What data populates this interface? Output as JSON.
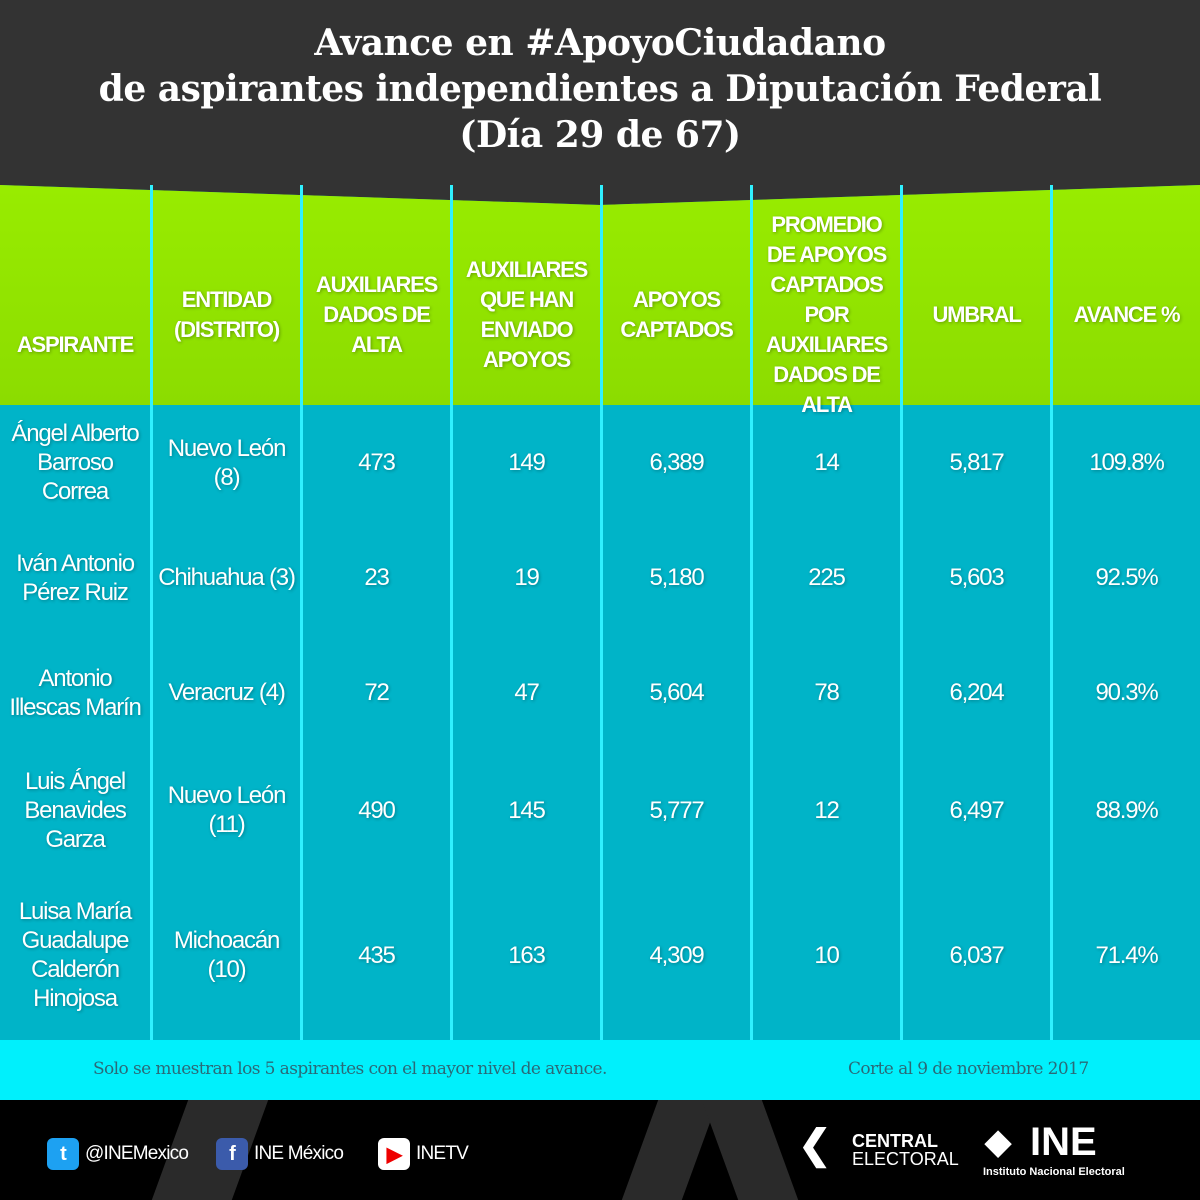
{
  "title": [
    "Avance en #ApoyoCiudadano",
    "de aspirantes independientes a Diputación Federal",
    "(Día 29 de 67)"
  ],
  "headers": [
    "ASPIRANTE",
    "ENTIDAD (DISTRITO)",
    "AUXILIARES DADOS DE ALTA",
    "AUXILIARES QUE HAN ENVIADO APOYOS",
    "APOYOS CAPTADOS",
    "PROMEDIO DE APOYOS CAPTADOS POR AUXILIARES DADOS DE ALTA",
    "UMBRAL",
    "AVANCE %"
  ],
  "rows": [
    [
      "Ángel Alberto Barroso Correa",
      "Nuevo León (8)",
      "473",
      "149",
      "6,389",
      "14",
      "5,817",
      "109.8%"
    ],
    [
      "Iván Antonio Pérez Ruiz",
      "Chihuahua (3)",
      "23",
      "19",
      "5,180",
      "225",
      "5,603",
      "92.5%"
    ],
    [
      "Antonio Illescas Marín",
      "Veracruz (4)",
      "72",
      "47",
      "5,604",
      "78",
      "6,204",
      "90.3%"
    ],
    [
      "Luis Ángel Benavides Garza",
      "Nuevo León (11)",
      "490",
      "145",
      "5,777",
      "12",
      "6,497",
      "88.9%"
    ],
    [
      "Luisa María Guadalupe Calderón Hinojosa",
      "Michoacán (10)",
      "435",
      "163",
      "4,309",
      "10",
      "6,037",
      "71.4%"
    ]
  ],
  "footnote": "Solo se muestran los 5 aspirantes con el mayor nivel de avance.",
  "cutoff": "Corte al 9 de noviembre 2017",
  "social": {
    "twitter": "@INEMexico",
    "facebook": "INE México",
    "youtube": "INETV"
  },
  "logos": {
    "central": [
      "CENTRAL",
      "ELECTORAL"
    ],
    "ine": "INE",
    "ine_sub": "Instituto Nacional Electoral"
  },
  "colors": {
    "header": "#8fe400",
    "body": "#00b4c8",
    "footer": "#00f0fc"
  }
}
